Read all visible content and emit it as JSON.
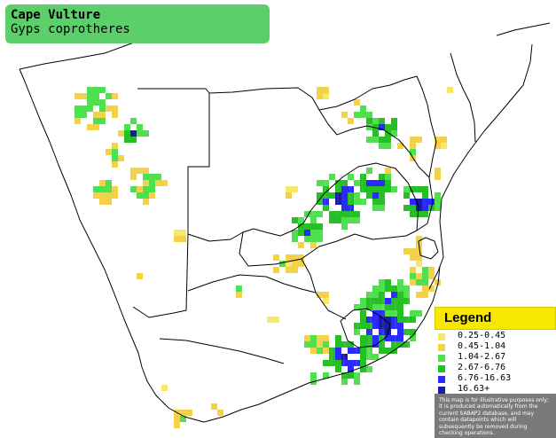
{
  "title": {
    "common_name": "Cape Vulture",
    "scientific_name": "Gyps coprotheres"
  },
  "legend": {
    "title": "Legend",
    "items": [
      {
        "label": "0.25-0.45",
        "color": "#f5e96a"
      },
      {
        "label": "0.45-1.04",
        "color": "#f3d24a"
      },
      {
        "label": "1.04-2.67",
        "color": "#4fe04f"
      },
      {
        "label": "2.67-6.76",
        "color": "#26c026"
      },
      {
        "label": "6.76-16.63",
        "color": "#2a2aff"
      },
      {
        "label": "16.63+",
        "color": "#1a1aa8"
      }
    ],
    "note": "This map is for illustrative purposes only; it is produced automatically from the current SABAP2 database, and may contain datapoints which will subsequently be removed during checking operations."
  },
  "colors": {
    "background": "#ffffff",
    "border": "#000000",
    "title_box": "#5ccf6a",
    "legend_header": "#f6e800",
    "note_box": "#7a7a7a"
  }
}
